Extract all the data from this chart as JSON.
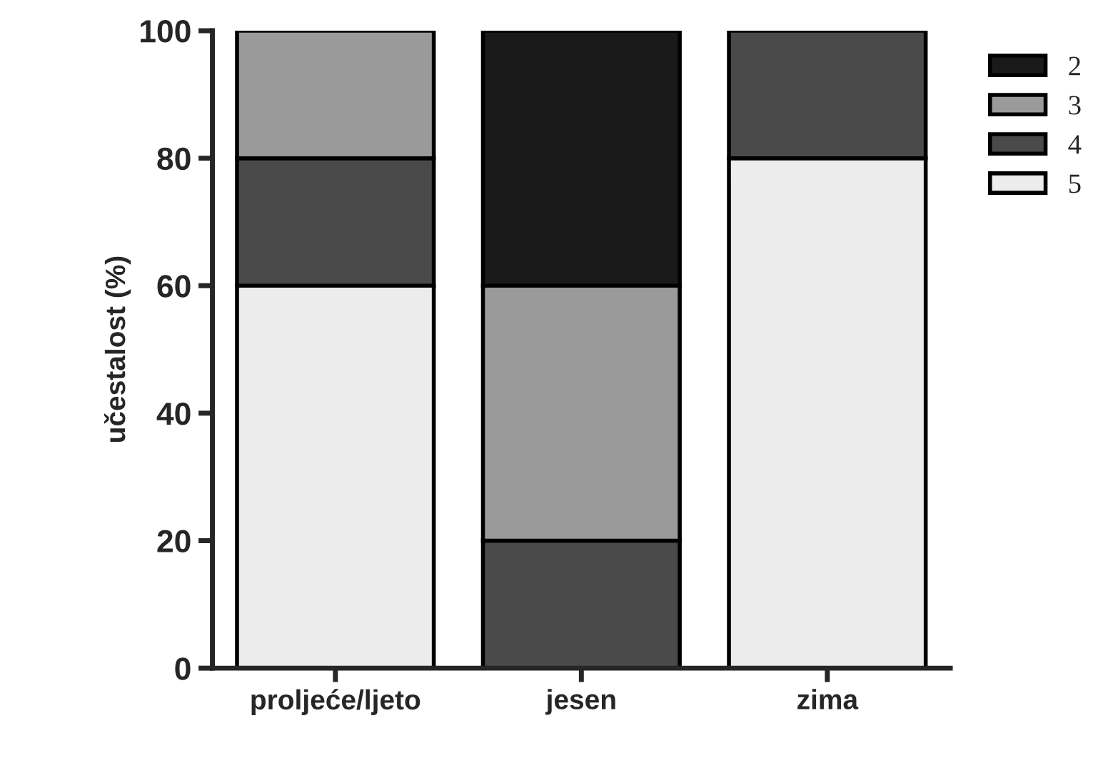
{
  "chart_data": {
    "type": "bar",
    "stacked": true,
    "ylabel": "učestalost (%)",
    "categories": [
      "proljeće/ljeto",
      "jesen",
      "zima"
    ],
    "series": [
      {
        "name": "5",
        "color": "#ececec",
        "values": [
          60,
          null,
          80
        ]
      },
      {
        "name": "4",
        "color": "#4a4a4a",
        "values": [
          20,
          20,
          20
        ]
      },
      {
        "name": "3",
        "color": "#9a9a9a",
        "values": [
          20,
          40,
          null
        ]
      },
      {
        "name": "2",
        "color": "#1a1a1a",
        "values": [
          null,
          40,
          null
        ]
      }
    ],
    "ylim": [
      0,
      100
    ],
    "yticks": [
      0,
      20,
      40,
      60,
      80,
      100
    ],
    "grid": false,
    "legend": "top right"
  }
}
